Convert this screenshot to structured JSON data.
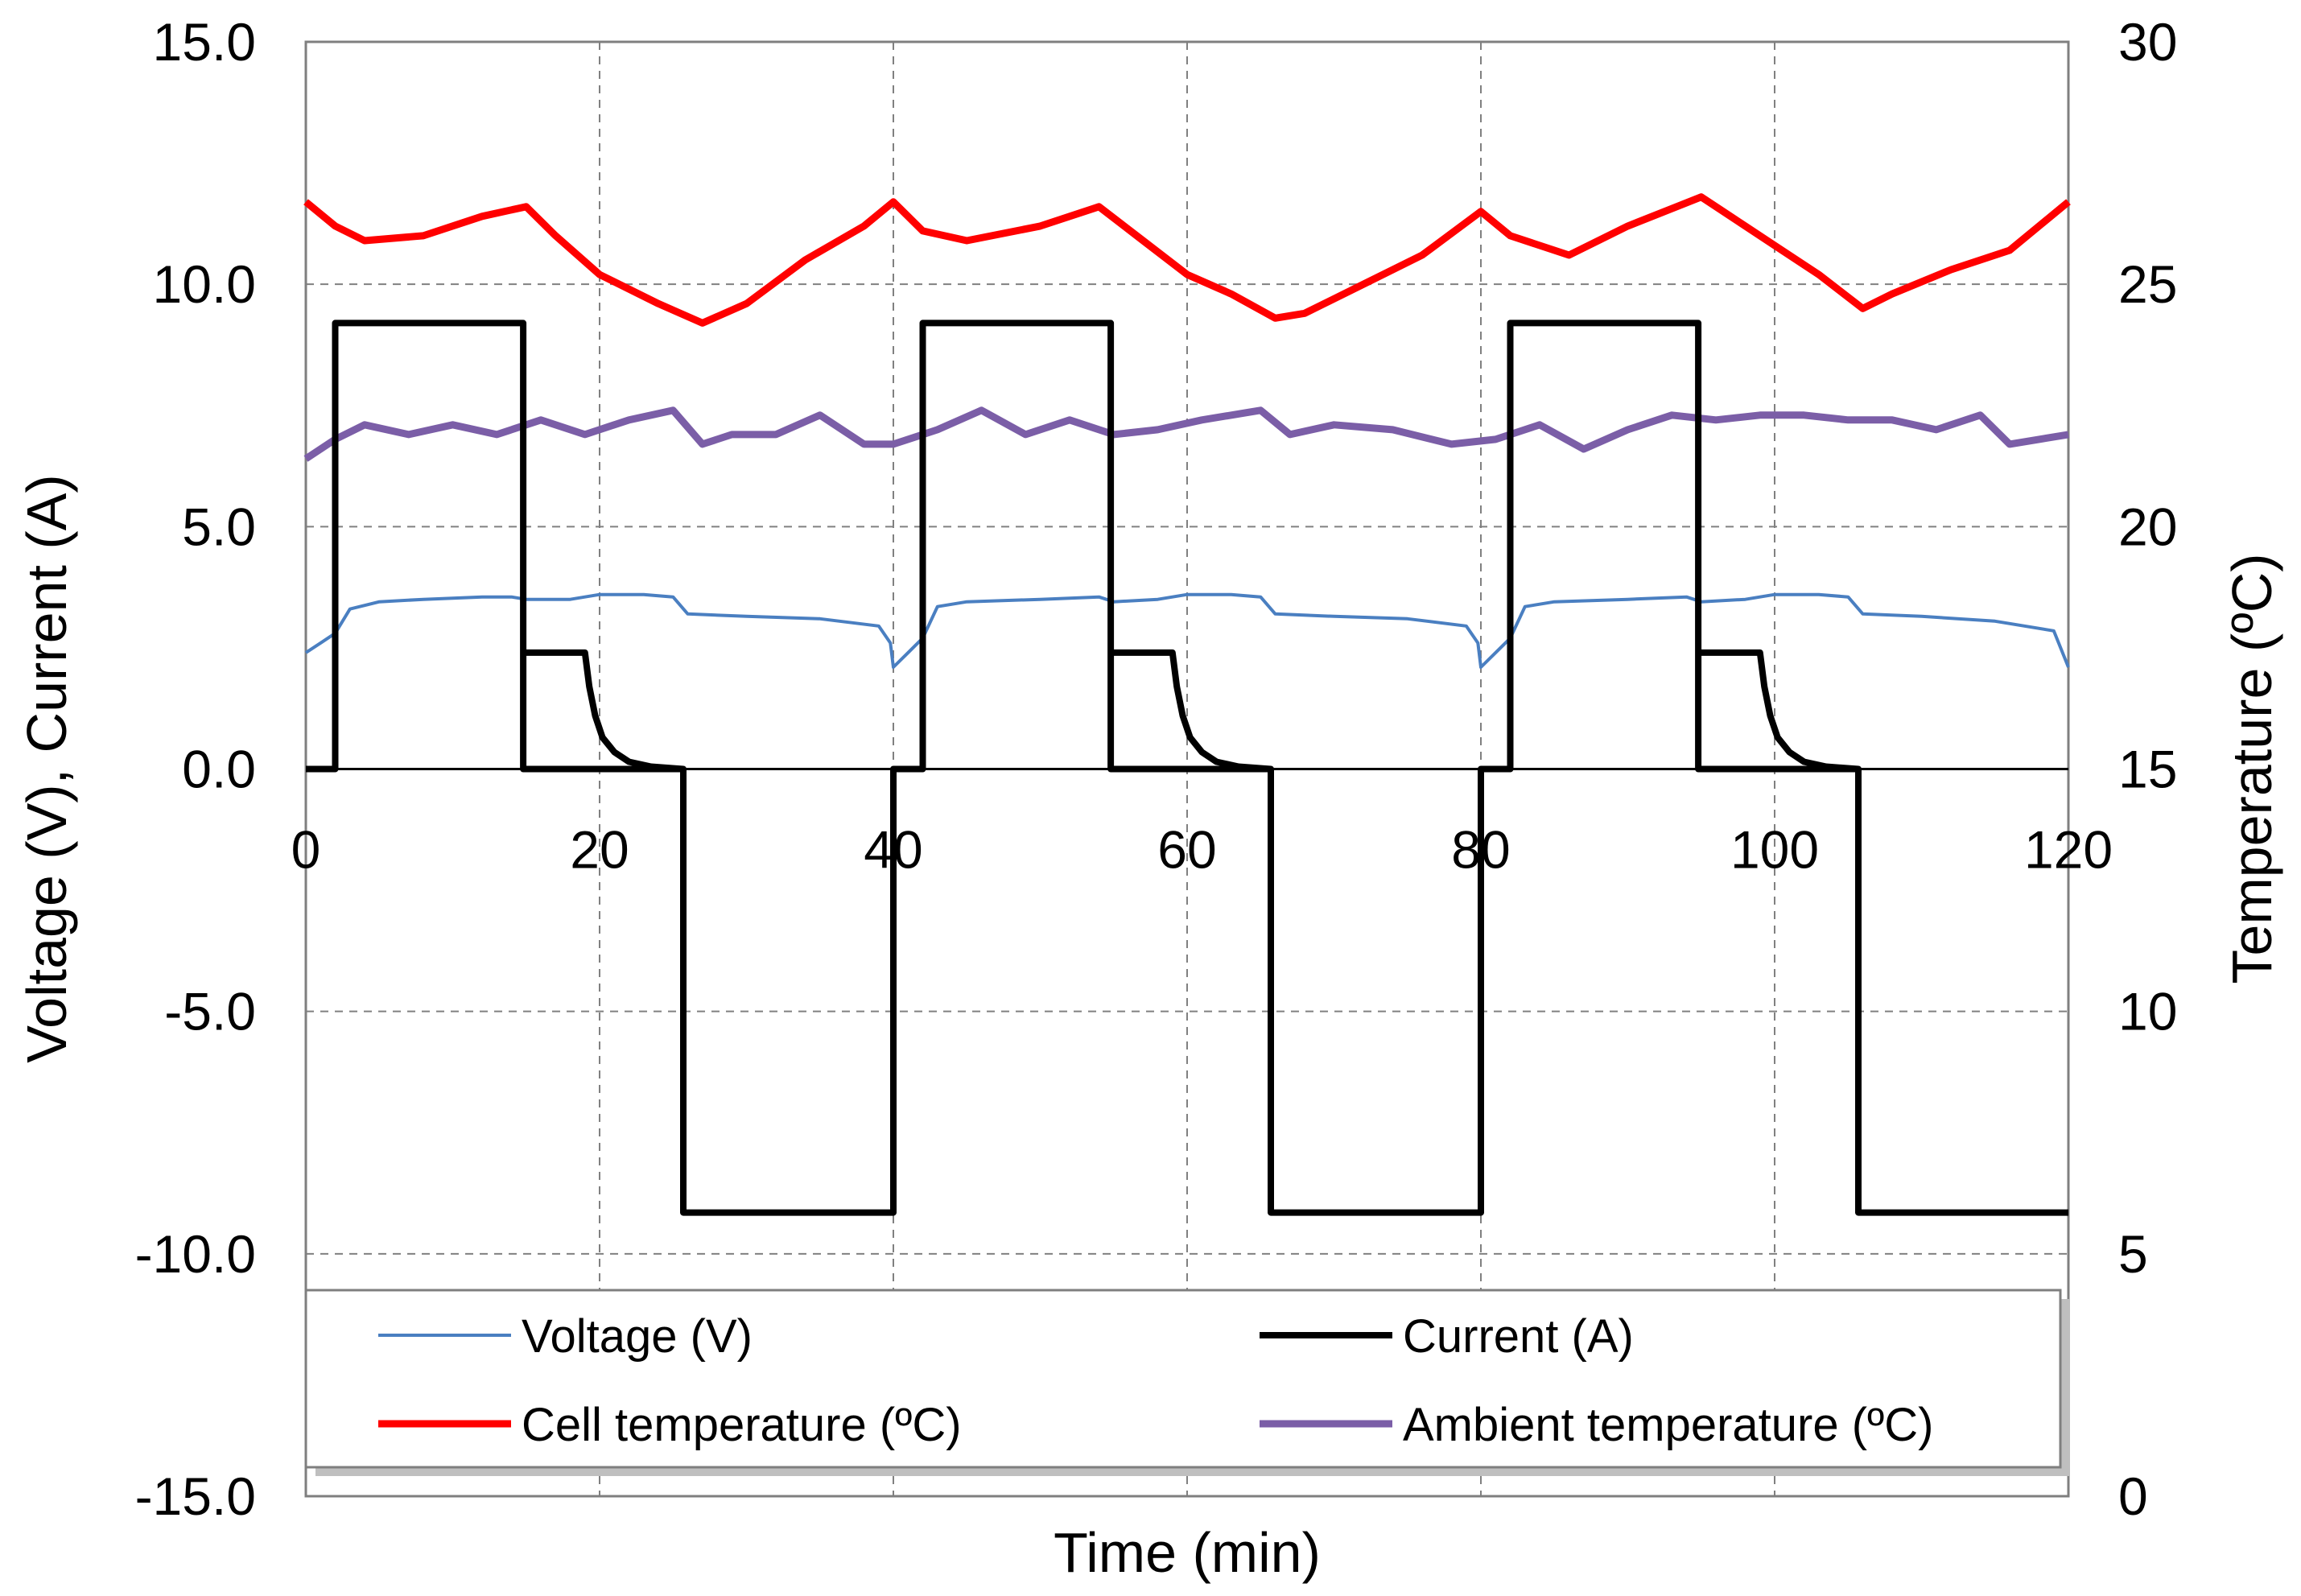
{
  "chart_data": {
    "type": "line",
    "xlabel": "Time (min)",
    "ylabel_left": "Voltage (V), Current (A)",
    "ylabel_right": "Temperature (ºC)",
    "xlim": [
      0,
      120
    ],
    "ylim_left": [
      -15,
      15
    ],
    "ylim_right": [
      0,
      30
    ],
    "grid": true,
    "x_ticks": [
      0,
      20,
      40,
      60,
      80,
      100,
      120
    ],
    "x_tick_labels": [
      "0",
      "20",
      "40",
      "60",
      "80",
      "100",
      "120"
    ],
    "y_left_ticks": [
      15,
      10,
      5,
      0,
      -5,
      -10,
      -15
    ],
    "y_left_tick_labels": [
      "15.0",
      "10.0",
      "5.0",
      "0.0",
      "-5.0",
      "-10.0",
      "-15.0"
    ],
    "y_right_ticks": [
      30,
      25,
      20,
      15,
      10,
      5,
      0
    ],
    "y_right_tick_labels": [
      "30",
      "25",
      "20",
      "15",
      "10",
      "5",
      "0"
    ],
    "legend_position": "bottom",
    "series": [
      {
        "name": "Voltage (V)",
        "axis": "left",
        "color": "#4a7fc1",
        "x": [
          0,
          1,
          2,
          3,
          5,
          8,
          12,
          14,
          15,
          18,
          20,
          23,
          25,
          26,
          30,
          35,
          39,
          39.8,
          40,
          41,
          42,
          43,
          45,
          50,
          54,
          55,
          58,
          60,
          63,
          65,
          66,
          70,
          75,
          79,
          79.8,
          80,
          81,
          82,
          83,
          85,
          90,
          94,
          95,
          98,
          100,
          103,
          105,
          106,
          110,
          115,
          119,
          120
        ],
        "values": [
          2.4,
          2.6,
          2.8,
          3.3,
          3.45,
          3.5,
          3.55,
          3.55,
          3.5,
          3.5,
          3.6,
          3.6,
          3.55,
          3.2,
          3.15,
          3.1,
          2.95,
          2.6,
          2.1,
          2.4,
          2.7,
          3.35,
          3.45,
          3.5,
          3.55,
          3.45,
          3.5,
          3.6,
          3.6,
          3.55,
          3.2,
          3.15,
          3.1,
          2.95,
          2.6,
          2.1,
          2.4,
          2.7,
          3.35,
          3.45,
          3.5,
          3.55,
          3.45,
          3.5,
          3.6,
          3.6,
          3.55,
          3.2,
          3.15,
          3.05,
          2.85,
          2.1
        ]
      },
      {
        "name": "Current (A)",
        "axis": "left",
        "color": "#000000",
        "x": [
          0,
          2,
          2,
          14.8,
          14.8,
          19,
          19.5,
          20,
          21,
          22,
          24,
          25.7,
          25.7,
          40,
          40,
          42,
          42,
          54.8,
          54.8,
          59,
          59.5,
          60,
          61,
          62,
          64,
          65.7,
          65.7,
          80,
          80,
          82,
          82,
          94.8,
          94.8,
          99,
          99.5,
          100,
          101,
          102,
          104,
          105.7,
          105.7,
          120
        ],
        "values": [
          0,
          0,
          9.2,
          9.2,
          0,
          0,
          0,
          0,
          0,
          0,
          0,
          0,
          -9.15,
          -9.15,
          0,
          0,
          9.2,
          9.2,
          0,
          0,
          0,
          0,
          0,
          0,
          0,
          0,
          -9.15,
          -9.15,
          0,
          0,
          9.2,
          9.2,
          0,
          0,
          0,
          0,
          0,
          0,
          0,
          0,
          -9.15,
          -9.15
        ],
        "cv_tails": [
          {
            "x": [
              15,
              19,
              19.3,
              19.7,
              20.2,
              21,
              22,
              23.5,
              25.7
            ],
            "values": [
              2.4,
              2.4,
              1.7,
              1.1,
              0.65,
              0.35,
              0.15,
              0.05,
              0.0
            ]
          },
          {
            "x": [
              55,
              59,
              59.3,
              59.7,
              60.2,
              61,
              62,
              63.5,
              65.7
            ],
            "values": [
              2.4,
              2.4,
              1.7,
              1.1,
              0.65,
              0.35,
              0.15,
              0.05,
              0.0
            ]
          },
          {
            "x": [
              95,
              99,
              99.3,
              99.7,
              100.2,
              101,
              102,
              103.5,
              105.7
            ],
            "values": [
              2.4,
              2.4,
              1.7,
              1.1,
              0.65,
              0.35,
              0.15,
              0.05,
              0.0
            ]
          }
        ]
      },
      {
        "name": "Cell temperature (ºC)",
        "axis": "right",
        "color": "#ff0000",
        "x": [
          0,
          2,
          4,
          8,
          12,
          15,
          17,
          20,
          24,
          27,
          30,
          34,
          38,
          40,
          42,
          45,
          50,
          54,
          57,
          60,
          63,
          66,
          68,
          72,
          76,
          80,
          82,
          86,
          90,
          95,
          98,
          100,
          103,
          106,
          108,
          112,
          116,
          120
        ],
        "values": [
          26.7,
          26.2,
          25.9,
          26.0,
          26.4,
          26.6,
          26.0,
          25.2,
          24.6,
          24.2,
          24.6,
          25.5,
          26.2,
          26.7,
          26.1,
          25.9,
          26.2,
          26.6,
          25.9,
          25.2,
          24.8,
          24.3,
          24.4,
          25.0,
          25.6,
          26.5,
          26.0,
          25.6,
          26.2,
          26.8,
          26.2,
          25.8,
          25.2,
          24.5,
          24.8,
          25.3,
          25.7,
          26.7
        ]
      },
      {
        "name": "Ambient temperature (ºC)",
        "axis": "right",
        "color": "#7b5ea7",
        "x": [
          0,
          2,
          4,
          7,
          10,
          13,
          16,
          19,
          22,
          25,
          27,
          29,
          32,
          35,
          38,
          40,
          43,
          46,
          49,
          52,
          55,
          58,
          61,
          65,
          67,
          70,
          74,
          78,
          81,
          84,
          87,
          90,
          93,
          96,
          99,
          102,
          105,
          108,
          111,
          114,
          116,
          118,
          120
        ],
        "values": [
          21.4,
          21.8,
          22.1,
          21.9,
          22.1,
          21.9,
          22.2,
          21.9,
          22.2,
          22.4,
          21.7,
          21.9,
          21.9,
          22.3,
          21.7,
          21.7,
          22.0,
          22.4,
          21.9,
          22.2,
          21.9,
          22.0,
          22.2,
          22.4,
          21.9,
          22.1,
          22.0,
          21.7,
          21.8,
          22.1,
          21.6,
          22.0,
          22.3,
          22.2,
          22.3,
          22.3,
          22.2,
          22.2,
          22.0,
          22.3,
          21.7,
          21.8,
          21.9
        ]
      }
    ]
  }
}
